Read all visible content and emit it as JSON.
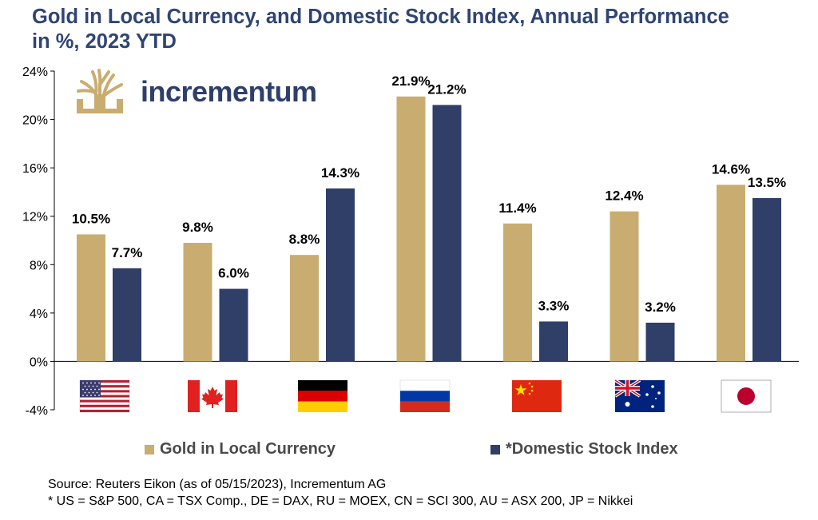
{
  "title": "Gold in Local Currency, and Domestic Stock Index, Annual Performance in %, 2023 YTD",
  "logo": {
    "text": "incrementum"
  },
  "legend": {
    "gold_label": "Gold in Local Currency",
    "stock_label": "*Domestic Stock Index"
  },
  "source": {
    "line1": "Source: Reuters Eikon (as of 05/15/2023), Incrementum AG",
    "line2": "* US = S&P 500, CA = TSX Comp., DE = DAX, RU = MOEX, CN = SCI 300, AU = ASX 200, JP = Nikkei"
  },
  "colors": {
    "gold": "#c9ad70",
    "stock": "#2f3f68",
    "axis": "#000000"
  },
  "chart_data": {
    "type": "bar",
    "categories": [
      "US",
      "CA",
      "DE",
      "RU",
      "CN",
      "AU",
      "JP"
    ],
    "category_icons": [
      "us-flag-icon",
      "canada-flag-icon",
      "germany-flag-icon",
      "russia-flag-icon",
      "china-flag-icon",
      "australia-flag-icon",
      "japan-flag-icon"
    ],
    "series": [
      {
        "name": "Gold in Local Currency",
        "values": [
          10.5,
          9.8,
          8.8,
          21.9,
          11.4,
          12.4,
          14.6
        ],
        "labels": [
          "10.5%",
          "9.8%",
          "8.8%",
          "21.9%",
          "11.4%",
          "12.4%",
          "14.6%"
        ]
      },
      {
        "name": "*Domestic Stock Index",
        "values": [
          7.7,
          6.0,
          14.3,
          21.2,
          3.3,
          3.2,
          13.5
        ],
        "labels": [
          "7.7%",
          "6.0%",
          "14.3%",
          "21.2%",
          "3.3%",
          "3.2%",
          "13.5%"
        ]
      }
    ],
    "yticks": [
      "24%",
      "20%",
      "16%",
      "12%",
      "8%",
      "4%",
      "0%",
      "-4%"
    ],
    "ytick_values": [
      24,
      20,
      16,
      12,
      8,
      4,
      0,
      -4
    ],
    "ylim": [
      -4,
      24
    ],
    "grid": false
  }
}
